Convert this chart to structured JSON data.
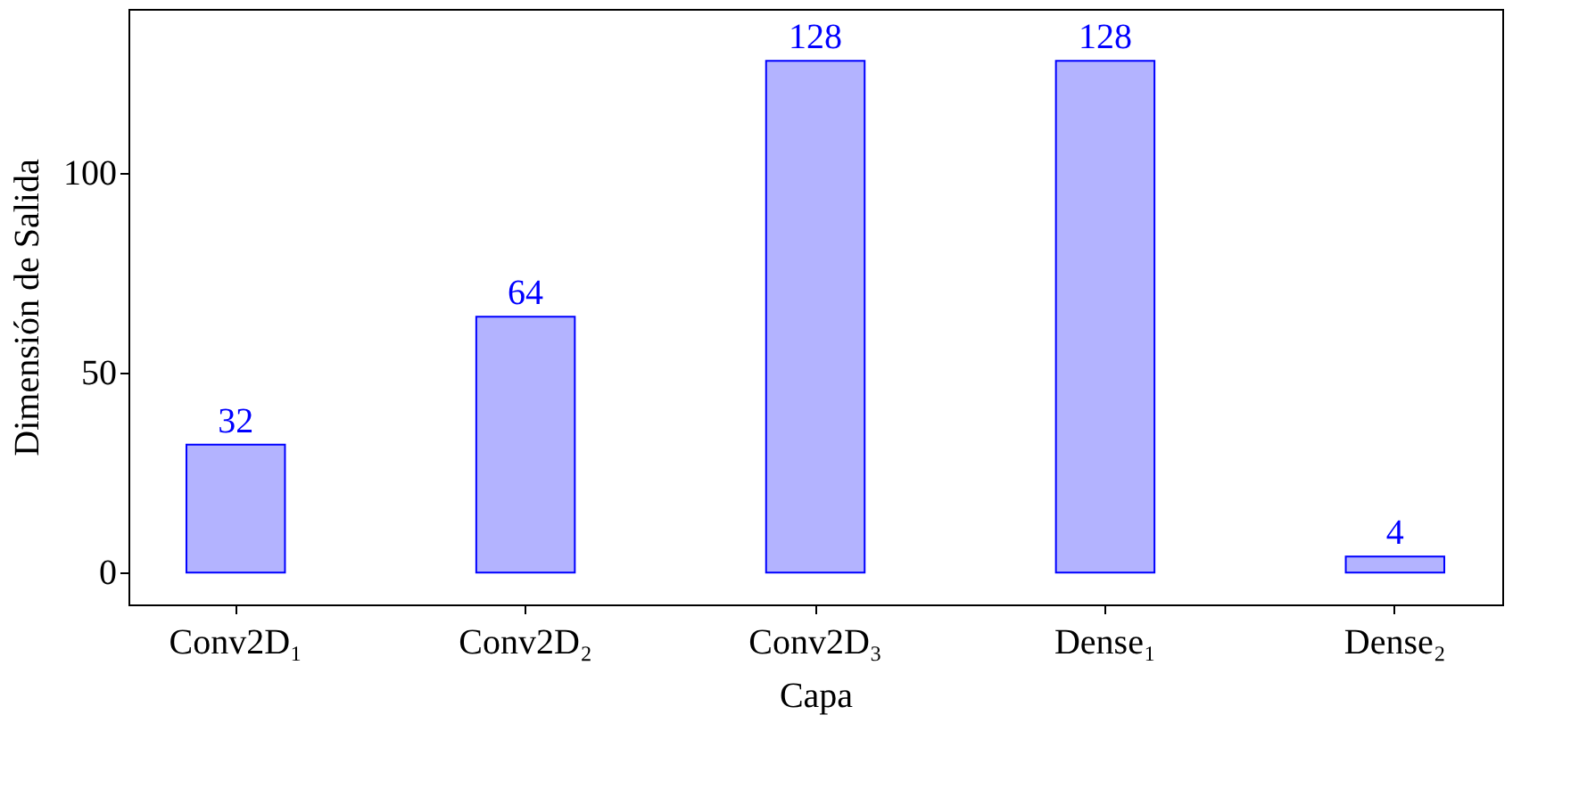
{
  "chart_data": {
    "type": "bar",
    "xlabel": "Capa",
    "ylabel": "Dimensión de Salida",
    "categories": [
      "Conv2D₁",
      "Conv2D₂",
      "Conv2D₃",
      "Dense₁",
      "Dense₂"
    ],
    "series": [
      {
        "color": "#b3b3ff",
        "values": [
          32,
          64,
          128,
          128,
          4
        ]
      }
    ],
    "ylim": [
      -8,
      141
    ],
    "yticks": [
      0,
      50,
      100
    ],
    "grid": false,
    "data_labels": true
  }
}
